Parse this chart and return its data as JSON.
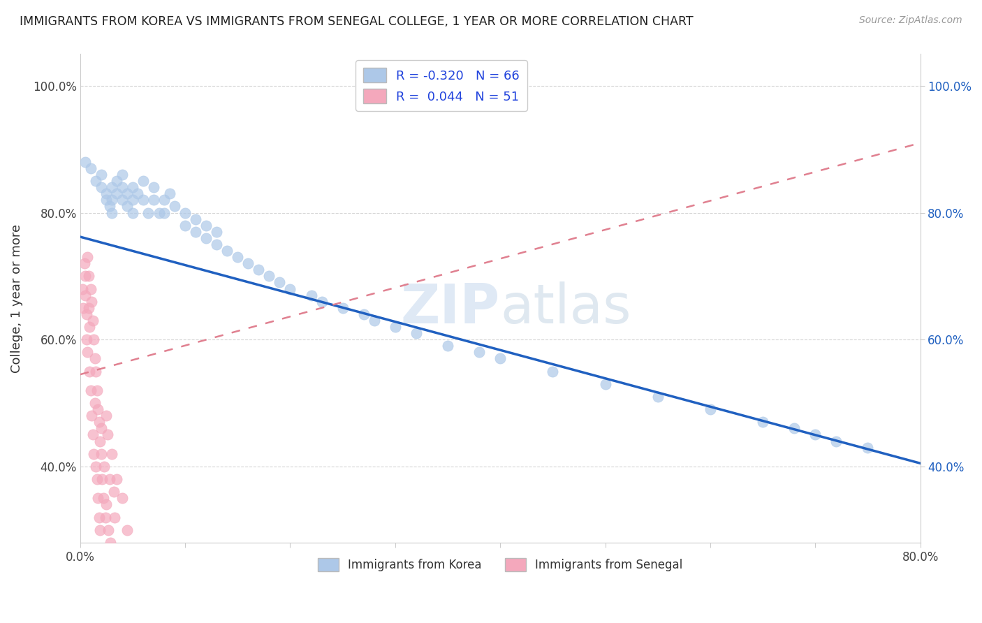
{
  "title": "IMMIGRANTS FROM KOREA VS IMMIGRANTS FROM SENEGAL COLLEGE, 1 YEAR OR MORE CORRELATION CHART",
  "source": "Source: ZipAtlas.com",
  "ylabel": "College, 1 year or more",
  "legend_korea": "Immigrants from Korea",
  "legend_senegal": "Immigrants from Senegal",
  "R_korea": -0.32,
  "N_korea": 66,
  "R_senegal": 0.044,
  "N_senegal": 51,
  "korea_color": "#adc8e8",
  "senegal_color": "#f4a8bc",
  "korea_line_color": "#2060c0",
  "senegal_line_color": "#e08090",
  "xlim": [
    0.0,
    0.8
  ],
  "ylim": [
    0.28,
    1.05
  ],
  "xtick_left": "0.0%",
  "xtick_right": "80.0%",
  "yticks": [
    0.4,
    0.6,
    0.8,
    1.0
  ],
  "background_color": "#ffffff",
  "korea_x": [
    0.005,
    0.01,
    0.015,
    0.02,
    0.02,
    0.025,
    0.025,
    0.028,
    0.03,
    0.03,
    0.03,
    0.035,
    0.035,
    0.04,
    0.04,
    0.04,
    0.045,
    0.045,
    0.05,
    0.05,
    0.05,
    0.055,
    0.06,
    0.06,
    0.065,
    0.07,
    0.07,
    0.075,
    0.08,
    0.08,
    0.085,
    0.09,
    0.1,
    0.1,
    0.11,
    0.11,
    0.12,
    0.12,
    0.13,
    0.13,
    0.14,
    0.15,
    0.16,
    0.17,
    0.18,
    0.19,
    0.2,
    0.22,
    0.25,
    0.28,
    0.3,
    0.35,
    0.4,
    0.45,
    0.5,
    0.55,
    0.6,
    0.65,
    0.68,
    0.7,
    0.72,
    0.75,
    0.23,
    0.27,
    0.32,
    0.38
  ],
  "korea_y": [
    0.88,
    0.87,
    0.85,
    0.84,
    0.86,
    0.83,
    0.82,
    0.81,
    0.84,
    0.82,
    0.8,
    0.85,
    0.83,
    0.86,
    0.84,
    0.82,
    0.83,
    0.81,
    0.84,
    0.82,
    0.8,
    0.83,
    0.85,
    0.82,
    0.8,
    0.84,
    0.82,
    0.8,
    0.82,
    0.8,
    0.83,
    0.81,
    0.8,
    0.78,
    0.79,
    0.77,
    0.78,
    0.76,
    0.77,
    0.75,
    0.74,
    0.73,
    0.72,
    0.71,
    0.7,
    0.69,
    0.68,
    0.67,
    0.65,
    0.63,
    0.62,
    0.59,
    0.57,
    0.55,
    0.53,
    0.51,
    0.49,
    0.47,
    0.46,
    0.45,
    0.44,
    0.43,
    0.66,
    0.64,
    0.61,
    0.58
  ],
  "senegal_x": [
    0.002,
    0.003,
    0.004,
    0.005,
    0.005,
    0.006,
    0.006,
    0.007,
    0.007,
    0.008,
    0.008,
    0.009,
    0.009,
    0.01,
    0.01,
    0.011,
    0.011,
    0.012,
    0.012,
    0.013,
    0.013,
    0.014,
    0.014,
    0.015,
    0.015,
    0.016,
    0.016,
    0.017,
    0.017,
    0.018,
    0.018,
    0.019,
    0.019,
    0.02,
    0.02,
    0.021,
    0.022,
    0.023,
    0.024,
    0.025,
    0.025,
    0.026,
    0.027,
    0.028,
    0.029,
    0.03,
    0.032,
    0.033,
    0.035,
    0.04,
    0.045
  ],
  "senegal_y": [
    0.68,
    0.65,
    0.72,
    0.7,
    0.67,
    0.64,
    0.6,
    0.73,
    0.58,
    0.7,
    0.65,
    0.55,
    0.62,
    0.68,
    0.52,
    0.66,
    0.48,
    0.63,
    0.45,
    0.6,
    0.42,
    0.57,
    0.5,
    0.55,
    0.4,
    0.52,
    0.38,
    0.49,
    0.35,
    0.47,
    0.32,
    0.44,
    0.3,
    0.46,
    0.42,
    0.38,
    0.35,
    0.4,
    0.32,
    0.48,
    0.34,
    0.45,
    0.3,
    0.38,
    0.28,
    0.42,
    0.36,
    0.32,
    0.38,
    0.35,
    0.3
  ],
  "korea_line_x0": 0.0,
  "korea_line_y0": 0.762,
  "korea_line_x1": 0.8,
  "korea_line_y1": 0.405,
  "senegal_line_x0": 0.0,
  "senegal_line_y0": 0.545,
  "senegal_line_x1": 0.8,
  "senegal_line_y1": 0.91
}
